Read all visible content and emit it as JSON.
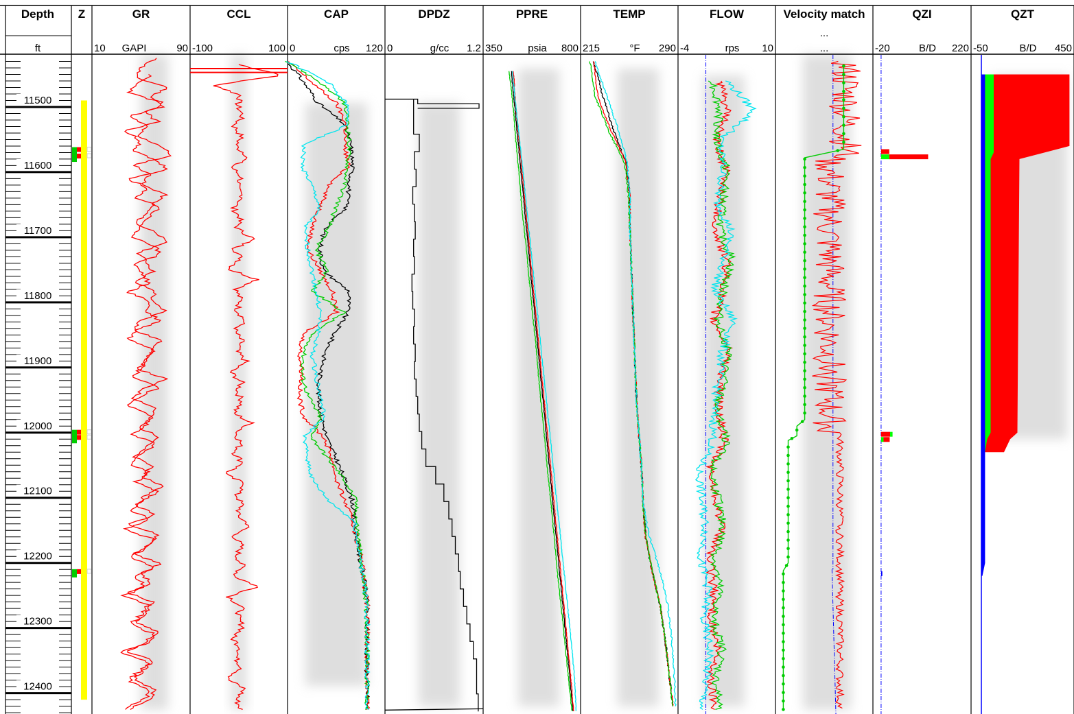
{
  "chart_data": {
    "type": "line",
    "title": "",
    "depth_axis": {
      "label": "Depth",
      "unit": "ft",
      "range": [
        11420,
        12432
      ],
      "ticks": [
        "11500",
        "11600",
        "11700",
        "11800",
        "11900",
        "12000",
        "12100",
        "12200",
        "12300",
        "12400"
      ]
    },
    "tracks": [
      {
        "id": "Z",
        "name": "Z"
      },
      {
        "id": "GR",
        "name": "GR",
        "min": "10",
        "unit": "GAPI",
        "max": "90",
        "series": [
          {
            "color": "#ff0000",
            "values": [
              62,
              50,
              45,
              72,
              58,
              68,
              40,
              55,
              46,
              66,
              75,
              44,
              58,
              50,
              70,
              60,
              54,
              45,
              64,
              70,
              48,
              55,
              60,
              44,
              62,
              58,
              70,
              50,
              44,
              66,
              60,
              54,
              48,
              70,
              52,
              44,
              62,
              58,
              48,
              66,
              54,
              44,
              60,
              50,
              68,
              54,
              46,
              62,
              40,
              64,
              58,
              44,
              66,
              50,
              58,
              40,
              60,
              54,
              46,
              64,
              58,
              38,
              60,
              52,
              44,
              62,
              56,
              40
            ]
          }
        ]
      },
      {
        "id": "CCL",
        "name": "CCL",
        "min": "-100",
        "unit": "",
        "max": "100",
        "series": [
          {
            "color": "#ff0000",
            "values": [
              0,
              90,
              -50,
              4,
              -3,
              8,
              -10,
              5,
              -6,
              20,
              -15,
              6,
              -5,
              10,
              -12,
              3,
              -4,
              30,
              -8,
              5,
              -20,
              40,
              -6,
              4,
              -3,
              12,
              -9,
              6,
              -5,
              15,
              -18,
              5,
              -3,
              8,
              -12,
              25,
              -6,
              4,
              -8,
              10,
              -30,
              15,
              -5,
              6,
              -4,
              22,
              -10,
              5,
              -4,
              8,
              -9,
              40,
              -20,
              6,
              -3,
              10,
              -14,
              5,
              -6,
              8,
              -25,
              12,
              -5,
              4
            ]
          }
        ]
      },
      {
        "id": "CAP",
        "name": "CAP",
        "min": "0",
        "unit": "cps",
        "max": "120",
        "series": [
          {
            "color": "#000000",
            "values": [
              0,
              20,
              38,
              70,
              78,
              80,
              76,
              72,
              46,
              40,
              44,
              76,
              74,
              58,
              46,
              40,
              38,
              42,
              48,
              60,
              70,
              80,
              82,
              86,
              90,
              95,
              98,
              98,
              98,
              98,
              98,
              98
            ]
          },
          {
            "color": "#ff0000",
            "values": [
              0,
              30,
              60,
              72,
              70,
              75,
              50,
              40,
              30,
              25,
              40,
              55,
              60,
              20,
              15,
              18,
              14,
              20,
              45,
              55,
              60,
              70,
              80,
              86,
              92,
              95,
              98,
              98,
              98,
              98,
              98,
              98
            ]
          },
          {
            "color": "#00cc00",
            "values": [
              0,
              40,
              70,
              74,
              76,
              74,
              70,
              60,
              50,
              35,
              50,
              30,
              70,
              30,
              20,
              18,
              25,
              40,
              30,
              50,
              70,
              84,
              85,
              88,
              90,
              95,
              97,
              98,
              98,
              98,
              98,
              98
            ]
          },
          {
            "color": "#00e5ee",
            "values": [
              0,
              50,
              72,
              76,
              20,
              18,
              30,
              40,
              20,
              25,
              30,
              35,
              40,
              38,
              30,
              35,
              40,
              45,
              20,
              25,
              30,
              50,
              82,
              86,
              90,
              95,
              97,
              98,
              98,
              98,
              98,
              98
            ]
          }
        ]
      },
      {
        "id": "DPDZ",
        "name": "DPDZ",
        "min": "0",
        "unit": "g/cc",
        "max": "1.2",
        "series": [
          {
            "color": "#000000",
            "values": [
              0.35,
              0.35,
              0.42,
              0.36,
              0.38,
              0.34,
              0.36,
              0.37,
              0.35,
              0.36,
              0.33,
              0.34,
              0.36,
              0.35,
              0.37,
              0.36,
              0.38,
              0.4,
              0.42,
              0.45,
              0.5,
              0.62,
              0.72,
              0.78,
              0.82,
              0.86,
              0.9,
              0.92,
              0.96,
              1.0,
              1.04,
              1.08,
              1.12,
              1.12,
              1.14
            ]
          }
        ]
      },
      {
        "id": "PPRE",
        "name": "PPRE",
        "min": "350",
        "unit": "psia",
        "max": "800",
        "series": [
          {
            "color": "#000000",
            "values": [
              480,
              495,
              510,
              525,
              540,
              555,
              570,
              585,
              600,
              615,
              630,
              645,
              660,
              675,
              690,
              705,
              720,
              735,
              750,
              765
            ]
          },
          {
            "color": "#ff0000",
            "values": [
              490,
              500,
              515,
              530,
              545,
              560,
              575,
              590,
              605,
              620,
              635,
              650,
              665,
              680,
              695,
              710,
              725,
              740,
              755,
              768
            ]
          },
          {
            "color": "#00cc00",
            "values": [
              470,
              488,
              500,
              515,
              528,
              545,
              560,
              575,
              592,
              605,
              620,
              636,
              650,
              666,
              680,
              695,
              712,
              728,
              744,
              760
            ]
          },
          {
            "color": "#00e5ee",
            "values": [
              485,
              500,
              518,
              535,
              550,
              566,
              582,
              598,
              614,
              630,
              646,
              662,
              678,
              694,
              710,
              726,
              742,
              758,
              772,
              780
            ]
          }
        ]
      },
      {
        "id": "TEMP",
        "name": "TEMP",
        "min": "215",
        "unit": "°F",
        "max": "290",
        "series": [
          {
            "color": "#000000",
            "values": [
              225,
              232,
              240,
              250,
              253,
              253,
              254,
              255,
              256,
              257,
              258,
              260,
              262,
              263,
              265,
              270,
              276,
              280,
              283,
              286
            ]
          },
          {
            "color": "#ff0000",
            "values": [
              225,
              228,
              238,
              250,
              253,
              253,
              254,
              255,
              256,
              257,
              258,
              260,
              262,
              263,
              265,
              270,
              276,
              280,
              283,
              286
            ]
          },
          {
            "color": "#00cc00",
            "values": [
              222,
              226,
              236,
              249,
              252,
              253,
              254,
              255,
              256,
              257,
              258,
              260,
              262,
              263,
              265,
              270,
              276,
              280,
              283,
              286
            ]
          },
          {
            "color": "#00e5ee",
            "values": [
              226,
              235,
              244,
              251,
              253,
              253,
              254,
              255,
              256,
              257,
              258,
              260,
              262,
              263,
              268,
              276,
              282,
              285,
              287,
              288
            ]
          }
        ]
      },
      {
        "id": "FLOW",
        "name": "FLOW",
        "min": "-4",
        "unit": "rps",
        "max": "10",
        "series": [
          {
            "color": "#ff0000",
            "values": [
              2,
              3,
              1.5,
              2.8,
              2,
              1.2,
              3,
              2.5,
              1,
              3.4,
              2,
              1.8,
              2.6,
              0.5,
              1.6,
              2.2,
              0.4,
              1.2,
              0.8,
              1.6,
              0.6,
              1.4
            ]
          },
          {
            "color": "#00cc00",
            "values": [
              1,
              2,
              1.5,
              3,
              2.4,
              2,
              3.8,
              2.4,
              1.8,
              3.2,
              2.6,
              1.4,
              3.0,
              0.8,
              1.8,
              2.5,
              1.2,
              2.0,
              1.0,
              2.4,
              1.4,
              2.0
            ]
          },
          {
            "color": "#00e5ee",
            "values": [
              3,
              7,
              2,
              2.5,
              1.6,
              3.6,
              2.6,
              1.2,
              4.0,
              2.4,
              1.8,
              1.2,
              1.0,
              -1.0,
              -0.6,
              0.0,
              -0.8,
              0.4,
              -0.4,
              0.6,
              0.0,
              -0.6
            ]
          }
        ]
      },
      {
        "id": "VEL",
        "name": "Velocity match",
        "scale": "...",
        "series": [
          {
            "color": "#ff0000"
          },
          {
            "color": "#00cc00"
          },
          {
            "color": "#0000ff"
          }
        ]
      },
      {
        "id": "QZI",
        "name": "QZI",
        "min": "-20",
        "unit": "B/D",
        "max": "220",
        "bars": [
          {
            "depth": 11568,
            "color": "#ff0000",
            "value": 20
          },
          {
            "depth": 11576,
            "color": "#00ff00",
            "value": 20
          },
          {
            "depth": 11576,
            "color": "#ff0000",
            "value": 95
          },
          {
            "depth": 12002,
            "color": "#ff0000",
            "value": 22
          },
          {
            "depth": 12002,
            "color": "#00ff00",
            "value": 6
          },
          {
            "depth": 12010,
            "color": "#00ff00",
            "value": 6
          },
          {
            "depth": 12010,
            "color": "#ff0000",
            "value": 15
          },
          {
            "depth": 12216,
            "color": "#0000ff",
            "value": 3
          }
        ]
      },
      {
        "id": "QZT",
        "name": "QZT",
        "min": "-50",
        "unit": "B/D",
        "max": "450",
        "layers": [
          {
            "color": "#0000ff",
            "profile": [
              [
                11450,
                18
              ],
              [
                12200,
                18
              ],
              [
                12220,
                5
              ]
            ]
          },
          {
            "color": "#00ff00",
            "profile": [
              [
                11450,
                60
              ],
              [
                11570,
                60
              ],
              [
                11580,
                45
              ],
              [
                12000,
                45
              ],
              [
                12010,
                28
              ],
              [
                12030,
                18
              ]
            ]
          },
          {
            "color": "#ff0000",
            "profile": [
              [
                11450,
                428
              ],
              [
                11560,
                428
              ],
              [
                11580,
                185
              ],
              [
                12000,
                175
              ],
              [
                12010,
                140
              ],
              [
                12030,
                110
              ]
            ]
          }
        ]
      }
    ],
    "zones": {
      "yellow": [
        11490,
        12410
      ],
      "perforations": [
        11568,
        11578,
        12002,
        12010,
        12216
      ]
    }
  }
}
